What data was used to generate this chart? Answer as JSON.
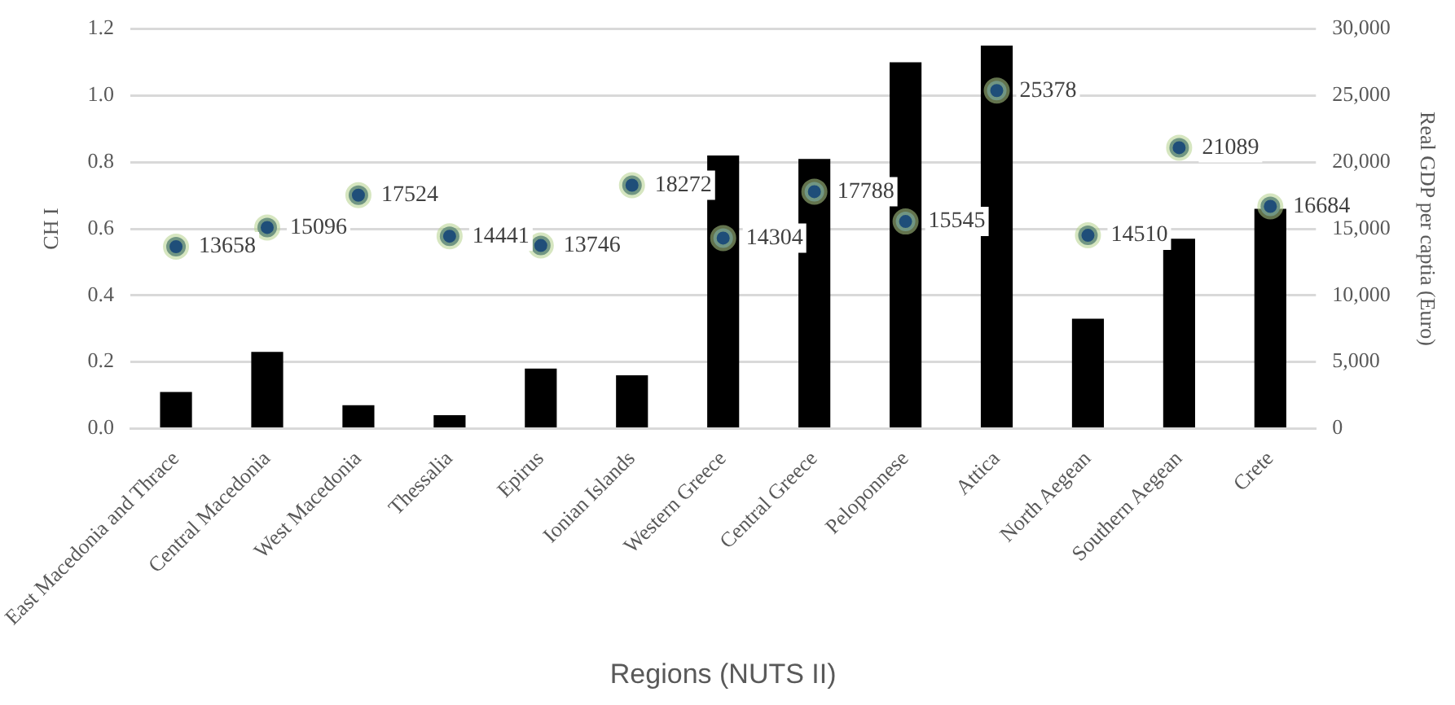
{
  "chart_data": {
    "type": "bar",
    "xlabel": "Regions (NUTS II)",
    "ylabel": "CH I",
    "y2label": "Real GDP per captia (Euro)",
    "categories": [
      "East Macedonia and Thrace",
      "Central Macedonia",
      "West Macedonia",
      "Thessalia",
      "Epirus",
      "Ionian Islands",
      "Western Greece",
      "Central Greece",
      "Peloponnese",
      "Attica",
      "North Aegean",
      "Southern Aegean",
      "Crete"
    ],
    "series": [
      {
        "type": "bar",
        "color": "#000000",
        "values": [
          0.11,
          0.23,
          0.07,
          0.04,
          0.18,
          0.16,
          0.82,
          0.81,
          1.1,
          1.15,
          0.33,
          0.57,
          0.66
        ]
      },
      {
        "type": "scatter",
        "axis": "y2",
        "color": "#1f4e79",
        "x": [
          "East Macedonia and Thrace",
          "Central Macedonia",
          "West Macedonia",
          "Thessalia",
          "Epirus",
          "Ionian Islands",
          "Western Greece",
          "Central Greece",
          "Peloponnese",
          "Attica",
          "North Aegean",
          "Southern Aegean",
          "Crete"
        ],
        "values": [
          13658,
          15096,
          17524,
          14441,
          13746,
          18272,
          14304,
          17788,
          15545,
          25378,
          14510,
          21089,
          16684
        ],
        "value_labels": [
          "13658",
          "15096",
          "17524",
          "14441",
          "13746",
          "18272",
          "14304",
          "17788",
          "15545",
          "25378",
          "14510",
          "21089",
          "16684"
        ]
      }
    ],
    "ylim": [
      0,
      1.2
    ],
    "yticks": [
      {
        "value": 0,
        "label": "0.0"
      },
      {
        "value": 0.2,
        "label": "0.2"
      },
      {
        "value": 0.4,
        "label": "0.4"
      },
      {
        "value": 0.6,
        "label": "0.6"
      },
      {
        "value": 0.8,
        "label": "0.8"
      },
      {
        "value": 1,
        "label": "1.0"
      },
      {
        "value": 1.2,
        "label": "1.2"
      }
    ],
    "y2lim": [
      0,
      30000
    ],
    "y2ticks": [
      0,
      {
        "value": 5000,
        "label": "5,000"
      },
      {
        "value": 10000,
        "label": "10,000"
      },
      {
        "value": 15000,
        "label": "15,000"
      },
      {
        "value": 20000,
        "label": "20,000"
      },
      {
        "value": 25000,
        "label": "25,000"
      },
      {
        "value": 30000,
        "label": "30,000"
      }
    ],
    "grid": "y",
    "legend": false,
    "marker": "circle"
  }
}
